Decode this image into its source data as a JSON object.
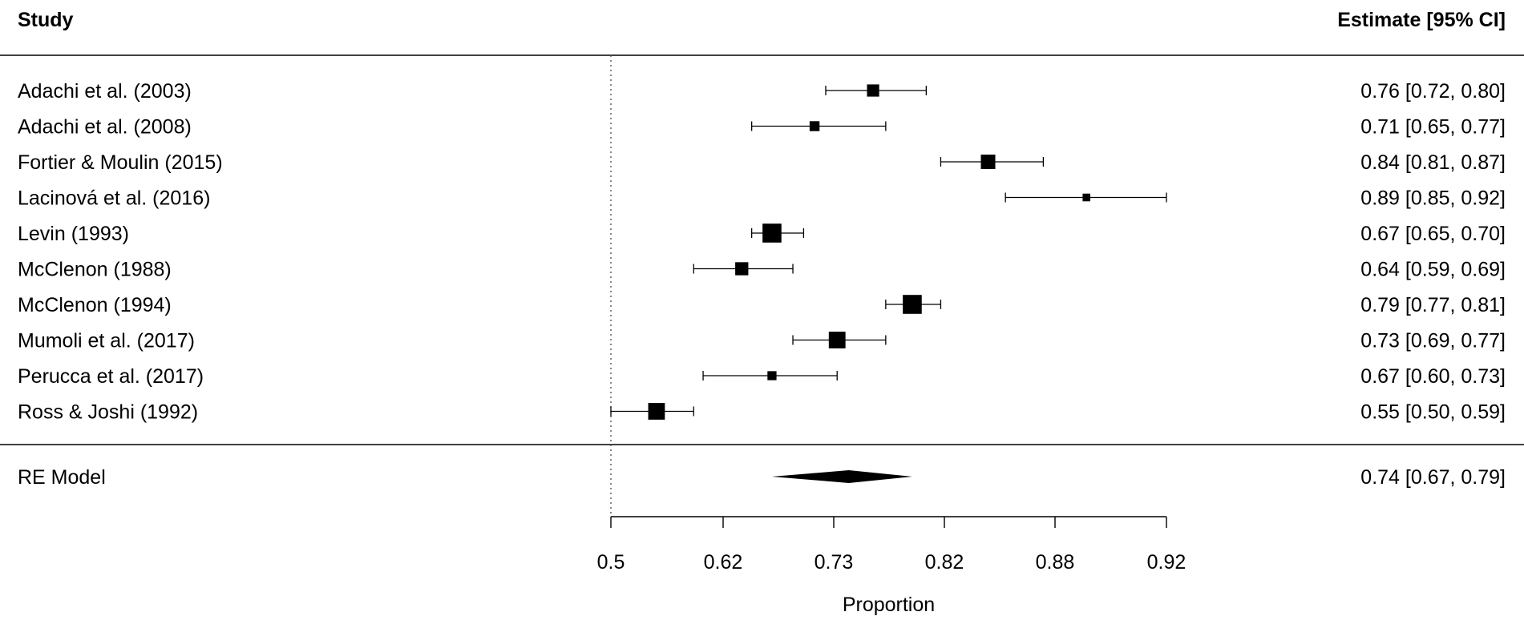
{
  "chart_data": {
    "type": "forest",
    "headers": {
      "left": "Study",
      "right": "Estimate [95% CI]"
    },
    "studies": [
      {
        "label": "Adachi et al. (2003)",
        "estimate": 0.76,
        "ci": [
          0.72,
          0.8
        ],
        "estimate_text": "0.76 [0.72, 0.80]",
        "weight": 2
      },
      {
        "label": "Adachi et al. (2008)",
        "estimate": 0.71,
        "ci": [
          0.65,
          0.77
        ],
        "estimate_text": "0.71 [0.65, 0.77]",
        "weight": 1.5
      },
      {
        "label": "Fortier & Moulin (2015)",
        "estimate": 0.84,
        "ci": [
          0.81,
          0.87
        ],
        "estimate_text": "0.84 [0.81, 0.87]",
        "weight": 2.5
      },
      {
        "label": "Lacinová et al. (2016)",
        "estimate": 0.89,
        "ci": [
          0.85,
          0.92
        ],
        "estimate_text": "0.89 [0.85, 0.92]",
        "weight": 1
      },
      {
        "label": "Levin (1993)",
        "estimate": 0.67,
        "ci": [
          0.65,
          0.7
        ],
        "estimate_text": "0.67 [0.65, 0.70]",
        "weight": 3.5
      },
      {
        "label": "McClenon (1988)",
        "estimate": 0.64,
        "ci": [
          0.59,
          0.69
        ],
        "estimate_text": "0.64 [0.59, 0.69]",
        "weight": 2.2
      },
      {
        "label": "McClenon (1994)",
        "estimate": 0.79,
        "ci": [
          0.77,
          0.81
        ],
        "estimate_text": "0.79 [0.77, 0.81]",
        "weight": 3.5
      },
      {
        "label": "Mumoli et al. (2017)",
        "estimate": 0.73,
        "ci": [
          0.69,
          0.77
        ],
        "estimate_text": "0.73 [0.69, 0.77]",
        "weight": 3
      },
      {
        "label": "Perucca et al. (2017)",
        "estimate": 0.67,
        "ci": [
          0.6,
          0.73
        ],
        "estimate_text": "0.67 [0.60, 0.73]",
        "weight": 1.3
      },
      {
        "label": "Ross & Joshi (1992)",
        "estimate": 0.55,
        "ci": [
          0.5,
          0.59
        ],
        "estimate_text": "0.55 [0.50, 0.59]",
        "weight": 3
      }
    ],
    "summary": {
      "label": "RE Model",
      "estimate": 0.74,
      "ci": [
        0.67,
        0.79
      ],
      "estimate_text": "0.74 [0.67, 0.79]"
    },
    "xaxis": {
      "label": "Proportion",
      "ticks": [
        "0.5",
        "0.62",
        "0.73",
        "0.82",
        "0.88",
        "0.92"
      ],
      "reference_line": "0.5"
    }
  }
}
